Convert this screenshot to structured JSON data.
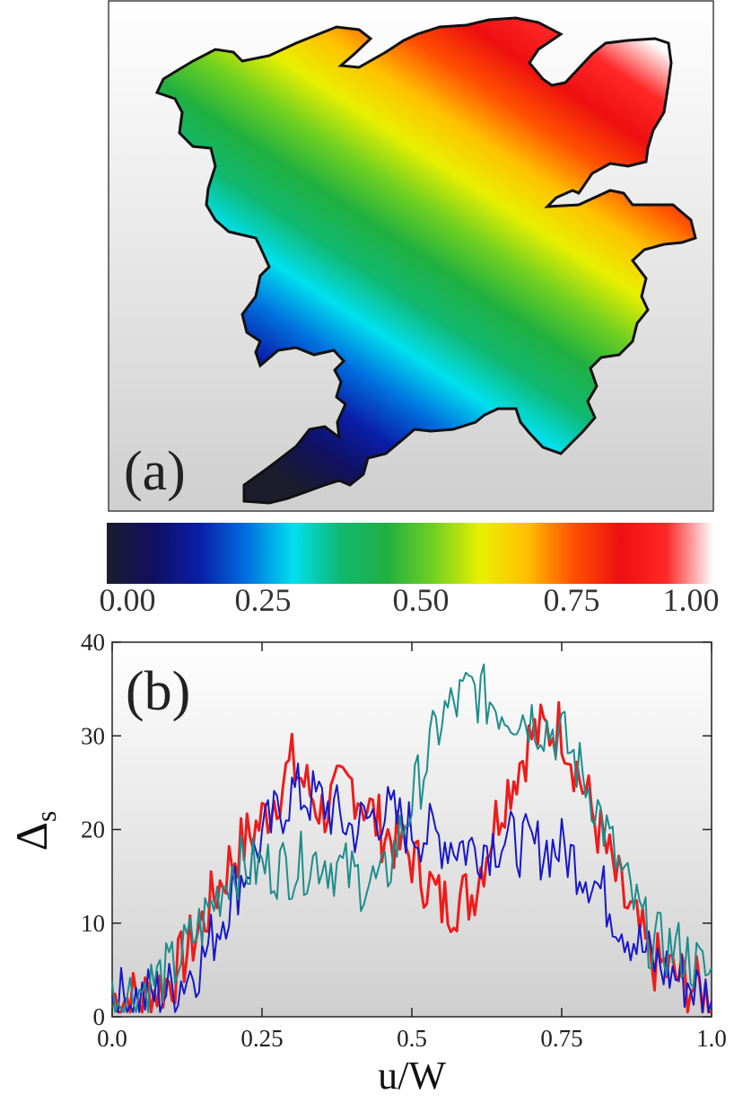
{
  "panel_a": {
    "label": "(a)",
    "colormap": [
      "#1c1c2c",
      "#101060",
      "#0a1ea8",
      "#0070e0",
      "#00e0ee",
      "#10b870",
      "#20b040",
      "#70d020",
      "#e8f000",
      "#ffc000",
      "#ff5000",
      "#ee1010",
      "#ff2828",
      "#ffffff"
    ]
  },
  "colorbar": {
    "ticks": [
      "0.00",
      "0.25",
      "0.50",
      "0.75",
      "1.00"
    ]
  },
  "panel_b": {
    "label": "(b)",
    "xlabel": "u/W",
    "ylabel": "Δ",
    "ylabel_sub": "s"
  },
  "chart_data": [
    {
      "type": "heatmap",
      "description_level": "normalized field on an irregular cluster, colorbar range 0 to 1",
      "colorbar_ticks": [
        0.0,
        0.25,
        0.5,
        0.75,
        1.0
      ],
      "vmin": 0.0,
      "vmax": 1.0
    },
    {
      "type": "line",
      "xlabel": "u/W",
      "ylabel": "Δs",
      "xlim": [
        0.0,
        1.0
      ],
      "ylim": [
        0,
        40
      ],
      "xticks": [
        "0.0",
        "0.25",
        "0.5",
        "0.75",
        "1.0"
      ],
      "yticks": [
        "0",
        "10",
        "20",
        "30",
        "40"
      ],
      "grid": false,
      "x": [
        0.0,
        0.05,
        0.1,
        0.15,
        0.2,
        0.25,
        0.3,
        0.35,
        0.4,
        0.45,
        0.5,
        0.55,
        0.6,
        0.65,
        0.7,
        0.75,
        0.8,
        0.85,
        0.9,
        0.95,
        1.0
      ],
      "series": [
        {
          "color": "#ee1c1c",
          "values": [
            2,
            2,
            4,
            10,
            17,
            21,
            27,
            22,
            25,
            20,
            17,
            12,
            13,
            23,
            30,
            31,
            22,
            13,
            6,
            4,
            2
          ]
        },
        {
          "color": "#1818c8",
          "values": [
            2,
            2,
            3,
            6,
            13,
            19,
            24,
            23,
            20,
            22,
            20,
            19,
            18,
            19,
            18,
            18,
            15,
            10,
            6,
            4,
            2
          ]
        },
        {
          "color": "#1f8c8c",
          "values": [
            2,
            3,
            5,
            10,
            16,
            16,
            16,
            17,
            15,
            14,
            23,
            32,
            35,
            33,
            32,
            30,
            24,
            15,
            8,
            7,
            4
          ]
        }
      ]
    }
  ]
}
